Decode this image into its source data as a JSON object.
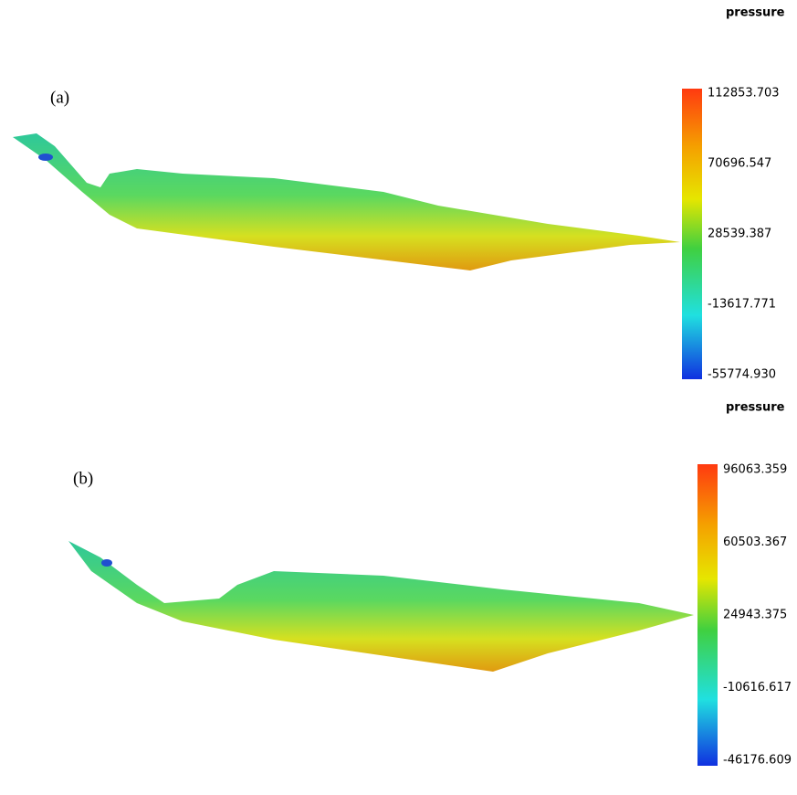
{
  "panels": [
    {
      "label": "(a)",
      "colorbar": {
        "title": "pressure",
        "ticks": [
          "112853.703",
          "70696.547",
          "28539.387",
          "-13617.771",
          "-55774.930"
        ]
      }
    },
    {
      "label": "(b)",
      "colorbar": {
        "title": "pressure",
        "ticks": [
          "96063.359",
          "60503.367",
          "24943.375",
          "-10616.617",
          "-46176.609"
        ]
      }
    }
  ]
}
